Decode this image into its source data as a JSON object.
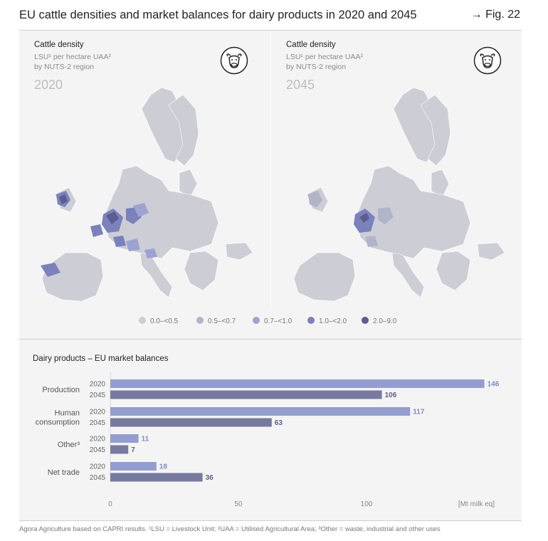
{
  "header": {
    "title": "EU cattle densities and market balances for dairy products in 2020 and 2045",
    "fig_ref": "→ Fig. 22"
  },
  "maps": {
    "panels": [
      {
        "title": "Cattle density",
        "sub1": "LSU¹ per hectare UAA²",
        "sub2": "by NUTS-2 region",
        "year": "2020"
      },
      {
        "title": "Cattle density",
        "sub1": "LSU¹ per hectare UAA²",
        "sub2": "by NUTS-2 region",
        "year": "2045"
      }
    ],
    "legend": [
      {
        "label": "0.0–<0.5",
        "color": "#cdcdd6"
      },
      {
        "label": "0.5–<0.7",
        "color": "#b2b4c8"
      },
      {
        "label": "0.7–<1.0",
        "color": "#9da3d1"
      },
      {
        "label": "1.0–<2.0",
        "color": "#7a81bb"
      },
      {
        "label": "2.0–9.0",
        "color": "#5b5d8f"
      }
    ],
    "icons": [
      "cow-icon"
    ]
  },
  "colors": {
    "bar_2020": "#939dcf",
    "bar_2045": "#767a9f",
    "label_2020": "#7f8ac4",
    "label_2045": "#5d6185"
  },
  "chart_data": {
    "type": "bar",
    "orientation": "horizontal",
    "title": "Dairy products – EU market balances",
    "categories": [
      "Production",
      "Human consumption",
      "Other³",
      "Net trade"
    ],
    "series": [
      {
        "name": "2020",
        "values": [
          146,
          117,
          11,
          18
        ]
      },
      {
        "name": "2045",
        "values": [
          106,
          63,
          7,
          36
        ]
      }
    ],
    "xlim": [
      0,
      150
    ],
    "xticks": [
      0,
      50,
      100
    ],
    "xlabel": "[Mt milk eq]"
  },
  "source": "Agora Agriculture based on CAPRI results. ¹LSU = Livestock Unit; ²UAA = Utilised Agricultural Area; ³Other = waste, industrial and other uses"
}
